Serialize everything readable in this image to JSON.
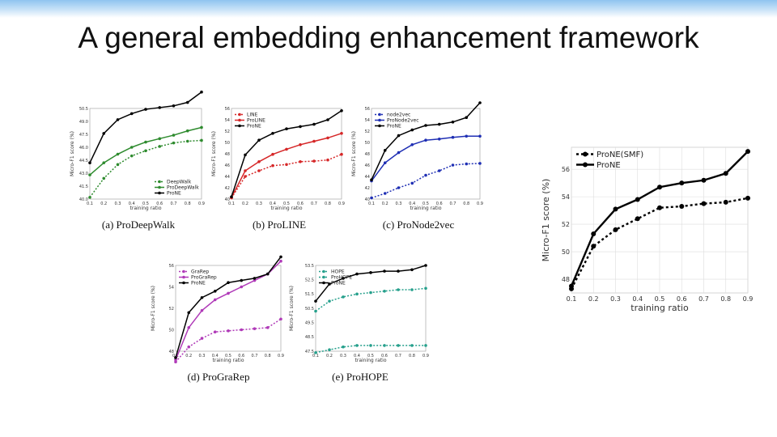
{
  "slide": {
    "title": "A general embedding enhancement framework"
  },
  "chart_data": [
    {
      "id": "a",
      "type": "line",
      "caption": "(a) ProDeepWalk",
      "xlabel": "training ratio",
      "ylabel": "Micro-F1 score (%)",
      "x": [
        0.1,
        0.2,
        0.3,
        0.4,
        0.5,
        0.6,
        0.7,
        0.8,
        0.9
      ],
      "ylim": [
        40.0,
        50.5
      ],
      "yticks": [
        "40.0",
        "41.5",
        "43.0",
        "44.5",
        "46.0",
        "47.5",
        "49.0",
        "50.5"
      ],
      "legend_position": "lower-right",
      "series": [
        {
          "name": "DeepWalk",
          "color": "#2e8b2e",
          "dash": true,
          "values": [
            40.2,
            42.4,
            44.0,
            45.0,
            45.6,
            46.1,
            46.5,
            46.7,
            46.8
          ]
        },
        {
          "name": "ProDeepWalk",
          "color": "#2e8b2e",
          "dash": false,
          "values": [
            42.8,
            44.2,
            45.2,
            46.0,
            46.6,
            47.0,
            47.4,
            47.9,
            48.3
          ]
        },
        {
          "name": "ProNE",
          "color": "#000000",
          "dash": false,
          "values": [
            44.2,
            47.6,
            49.2,
            49.9,
            50.4,
            50.6,
            50.8,
            51.2,
            52.4
          ]
        }
      ]
    },
    {
      "id": "b",
      "type": "line",
      "caption": "(b) ProLINE",
      "xlabel": "training ratio",
      "ylabel": "Micro-F1 score (%)",
      "x": [
        0.1,
        0.2,
        0.3,
        0.4,
        0.5,
        0.6,
        0.7,
        0.8,
        0.9
      ],
      "ylim": [
        40,
        56
      ],
      "yticks": [
        "40",
        "42",
        "44",
        "46",
        "48",
        "50",
        "52",
        "54",
        "56"
      ],
      "legend_position": "upper-left",
      "series": [
        {
          "name": "LINE",
          "color": "#d62728",
          "dash": true,
          "values": [
            40.2,
            44.0,
            45.0,
            45.9,
            46.1,
            46.6,
            46.7,
            46.9,
            47.9
          ]
        },
        {
          "name": "ProLINE",
          "color": "#d62728",
          "dash": false,
          "values": [
            40.3,
            45.0,
            46.6,
            47.9,
            48.8,
            49.6,
            50.2,
            50.8,
            51.6
          ]
        },
        {
          "name": "ProNE",
          "color": "#000000",
          "dash": false,
          "values": [
            40.4,
            47.8,
            50.4,
            51.6,
            52.4,
            52.8,
            53.2,
            54.0,
            55.6
          ]
        }
      ]
    },
    {
      "id": "c",
      "type": "line",
      "caption": "(c) ProNode2vec",
      "xlabel": "training ratio",
      "ylabel": "Micro-F1 score (%)",
      "x": [
        0.1,
        0.2,
        0.3,
        0.4,
        0.5,
        0.6,
        0.7,
        0.8,
        0.9
      ],
      "ylim": [
        40,
        56
      ],
      "yticks": [
        "40",
        "42",
        "44",
        "46",
        "48",
        "50",
        "52",
        "54",
        "56"
      ],
      "legend_position": "upper-left",
      "series": [
        {
          "name": "node2vec",
          "color": "#1f2fb4",
          "dash": true,
          "values": [
            40.2,
            41.0,
            42.0,
            42.8,
            44.2,
            45.0,
            46.0,
            46.2,
            46.3
          ]
        },
        {
          "name": "ProNode2vec",
          "color": "#1f2fb4",
          "dash": false,
          "values": [
            43.2,
            46.4,
            48.2,
            49.6,
            50.4,
            50.6,
            50.9,
            51.1,
            51.1
          ]
        },
        {
          "name": "ProNE",
          "color": "#000000",
          "dash": false,
          "values": [
            43.4,
            48.6,
            51.2,
            52.2,
            53.0,
            53.2,
            53.6,
            54.4,
            57.0
          ]
        }
      ]
    },
    {
      "id": "d",
      "type": "line",
      "caption": "(d) ProGraRep",
      "xlabel": "training ratio",
      "ylabel": "Micro-F1 score (%)",
      "x": [
        0.1,
        0.2,
        0.3,
        0.4,
        0.5,
        0.6,
        0.7,
        0.8,
        0.9
      ],
      "ylim": [
        48,
        56
      ],
      "yticks": [
        "48",
        "50",
        "52",
        "54",
        "56"
      ],
      "legend_position": "upper-left",
      "series": [
        {
          "name": "GraRep",
          "color": "#b03ab8",
          "dash": true,
          "values": [
            47.0,
            48.4,
            49.2,
            49.8,
            49.9,
            50.0,
            50.1,
            50.2,
            51.0
          ]
        },
        {
          "name": "ProGraRep",
          "color": "#b03ab8",
          "dash": false,
          "values": [
            47.2,
            50.2,
            51.8,
            52.8,
            53.4,
            54.0,
            54.6,
            55.2,
            56.4
          ]
        },
        {
          "name": "ProNE",
          "color": "#000000",
          "dash": false,
          "values": [
            47.4,
            51.6,
            53.0,
            53.6,
            54.4,
            54.6,
            54.8,
            55.2,
            56.8
          ]
        }
      ]
    },
    {
      "id": "e",
      "type": "line",
      "caption": "(e) ProHOPE",
      "xlabel": "training ratio",
      "ylabel": "Micro-F1 score (%)",
      "x": [
        0.1,
        0.2,
        0.3,
        0.4,
        0.5,
        0.6,
        0.7,
        0.8,
        0.9
      ],
      "ylim": [
        47.5,
        53.5
      ],
      "yticks": [
        "47.5",
        "48.5",
        "49.5",
        "50.5",
        "51.5",
        "52.5",
        "53.5"
      ],
      "legend_position": "upper-left",
      "series": [
        {
          "name": "HOPE",
          "color": "#26a08c",
          "dash": true,
          "values": [
            47.4,
            47.6,
            47.8,
            47.9,
            47.9,
            47.9,
            47.9,
            47.9,
            47.9
          ]
        },
        {
          "name": "ProHOPE",
          "color": "#26a08c",
          "dash": true,
          "values": [
            50.3,
            51.0,
            51.3,
            51.5,
            51.6,
            51.7,
            51.8,
            51.8,
            51.9
          ]
        },
        {
          "name": "ProNE",
          "color": "#000000",
          "dash": false,
          "values": [
            51.0,
            52.2,
            52.6,
            52.9,
            53.0,
            53.1,
            53.1,
            53.2,
            53.5
          ]
        }
      ]
    },
    {
      "id": "big",
      "type": "line",
      "caption": "",
      "xlabel": "training ratio",
      "ylabel": "Micro-F1 score (%)",
      "x": [
        0.1,
        0.2,
        0.3,
        0.4,
        0.5,
        0.6,
        0.7,
        0.8,
        0.9
      ],
      "xticks": [
        "0.1",
        "0.2",
        "0.3",
        "0.4",
        "0.5",
        "0.6",
        "0.7",
        "0.8",
        "0.9"
      ],
      "ylim": [
        47,
        57.6
      ],
      "yticks": [
        "48",
        "50",
        "52",
        "54",
        "56"
      ],
      "grid": true,
      "legend_position": "upper-left",
      "series": [
        {
          "name": "ProNE(SMF)",
          "color": "#000000",
          "dash": true,
          "values": [
            47.3,
            50.4,
            51.6,
            52.4,
            53.2,
            53.3,
            53.5,
            53.6,
            53.9
          ]
        },
        {
          "name": "ProNE",
          "color": "#000000",
          "dash": false,
          "values": [
            47.5,
            51.3,
            53.1,
            53.8,
            54.7,
            55.0,
            55.2,
            55.7,
            57.3
          ]
        }
      ]
    }
  ]
}
